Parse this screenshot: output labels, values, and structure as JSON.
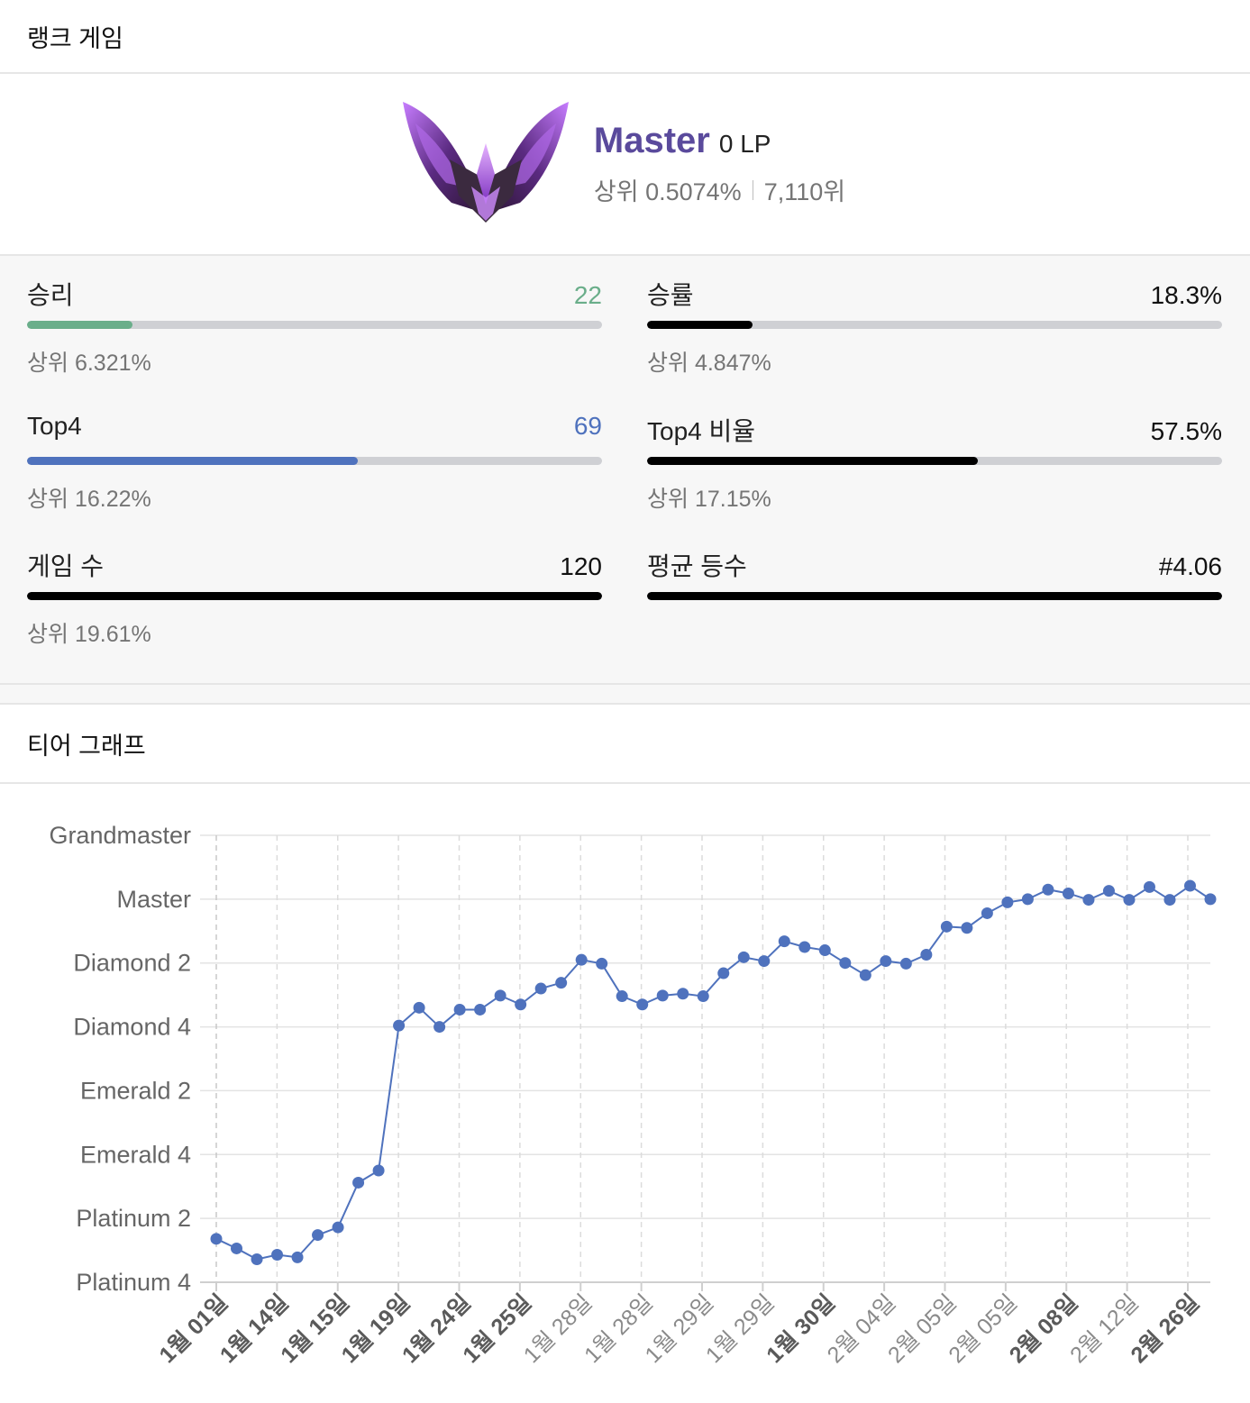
{
  "header": {
    "title": "랭크 게임"
  },
  "tier": {
    "name": "Master",
    "lp": "0 LP",
    "top_percent": "상위 0.5074%",
    "rank": "7,110위",
    "emblem_icon": "master-emblem-icon"
  },
  "stats": [
    {
      "key": "wins",
      "label": "승리",
      "value": "22",
      "value_color": "#6aae8a",
      "bar_color": "#6aae8a",
      "fill": 0.183,
      "sub": "상위 6.321%"
    },
    {
      "key": "winrate",
      "label": "승률",
      "value": "18.3%",
      "value_color": "#111111",
      "bar_color": "#000000",
      "fill": 0.183,
      "sub": "상위 4.847%"
    },
    {
      "key": "top4",
      "label": "Top4",
      "value": "69",
      "value_color": "#4f72bd",
      "bar_color": "#4f72bd",
      "fill": 0.575,
      "sub": "상위 16.22%"
    },
    {
      "key": "top4rate",
      "label": "Top4 비율",
      "value": "57.5%",
      "value_color": "#111111",
      "bar_color": "#000000",
      "fill": 0.575,
      "sub": "상위 17.15%"
    },
    {
      "key": "games",
      "label": "게임 수",
      "value": "120",
      "value_color": "#111111",
      "bar_color": "#000000",
      "fill": 1.0,
      "sub": "상위 19.61%"
    },
    {
      "key": "avgplace",
      "label": "평균 등수",
      "value": "#4.06",
      "value_color": "#111111",
      "bar_color": "#000000",
      "fill": 1.0,
      "sub": ""
    }
  ],
  "graph": {
    "title": "티어 그래프"
  },
  "chart_data": {
    "type": "line",
    "title": "",
    "xlabel": "",
    "ylabel": "",
    "y_ticks": [
      "Grandmaster",
      "Master",
      "Diamond 2",
      "Diamond 4",
      "Emerald 2",
      "Emerald 4",
      "Platinum 2",
      "Platinum 4"
    ],
    "y_tick_values": [
      7,
      6,
      5,
      4,
      3,
      2,
      1,
      0
    ],
    "ylim": [
      0,
      7
    ],
    "x_ticks": [
      {
        "label": "1월 01일",
        "bold": true
      },
      {
        "label": "1월 14일",
        "bold": true
      },
      {
        "label": "1월 15일",
        "bold": true
      },
      {
        "label": "1월 19일",
        "bold": true
      },
      {
        "label": "1월 24일",
        "bold": true
      },
      {
        "label": "1월 25일",
        "bold": true
      },
      {
        "label": "1월 28일",
        "bold": false
      },
      {
        "label": "1월 28일",
        "bold": false
      },
      {
        "label": "1월 29일",
        "bold": false
      },
      {
        "label": "1월 29일",
        "bold": false
      },
      {
        "label": "1월 30일",
        "bold": true
      },
      {
        "label": "2월 04일",
        "bold": false
      },
      {
        "label": "2월 05일",
        "bold": false
      },
      {
        "label": "2월 05일",
        "bold": false
      },
      {
        "label": "2월 08일",
        "bold": true
      },
      {
        "label": "2월 12일",
        "bold": false
      },
      {
        "label": "2월 26일",
        "bold": true
      }
    ],
    "grid": true,
    "line_color": "#4f72bd",
    "series": [
      {
        "values": [
          0.68,
          0.53,
          0.36,
          0.43,
          0.39,
          0.74,
          0.86,
          1.56,
          1.75,
          4.02,
          4.3,
          4.0,
          4.27,
          4.27,
          4.49,
          4.35,
          4.6,
          4.69,
          5.05,
          4.99,
          4.48,
          4.35,
          4.49,
          4.52,
          4.48,
          4.84,
          5.09,
          5.03,
          5.34,
          5.25,
          5.2,
          5.0,
          4.81,
          5.03,
          4.99,
          5.13,
          5.57,
          5.55,
          5.78,
          5.95,
          6.0,
          6.15,
          6.09,
          5.99,
          6.13,
          5.99,
          6.19,
          5.99,
          6.21,
          6.0
        ]
      }
    ]
  }
}
